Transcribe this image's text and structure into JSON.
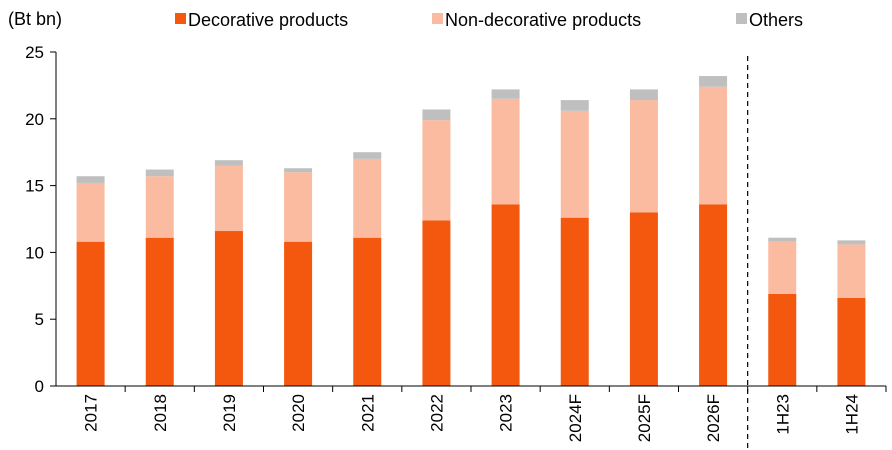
{
  "chart_data": {
    "type": "bar",
    "stacked": true,
    "unit_label": "(Bt bn)",
    "categories": [
      "2017",
      "2018",
      "2019",
      "2020",
      "2021",
      "2022",
      "2023",
      "2024F",
      "2025F",
      "2026F",
      "1H23",
      "1H24"
    ],
    "series": [
      {
        "name": "Decorative products",
        "color": "#f4580f",
        "values": [
          10.8,
          11.1,
          11.6,
          10.8,
          11.1,
          12.4,
          13.6,
          12.6,
          13.0,
          13.6,
          6.9,
          6.6
        ]
      },
      {
        "name": "Non-decorative products",
        "color": "#fbbba0",
        "values": [
          4.4,
          4.6,
          4.9,
          5.2,
          5.9,
          7.5,
          7.9,
          8.0,
          8.4,
          8.8,
          3.9,
          4.0
        ]
      },
      {
        "name": "Others",
        "color": "#bfbfbf",
        "values": [
          0.5,
          0.5,
          0.4,
          0.3,
          0.5,
          0.8,
          0.7,
          0.8,
          0.8,
          0.8,
          0.3,
          0.3
        ]
      }
    ],
    "ylim": [
      0,
      25
    ],
    "yticks": [
      0,
      5,
      10,
      15,
      20,
      25
    ],
    "legend_position": "top",
    "grid": false,
    "divider_after_category": "2026F"
  }
}
